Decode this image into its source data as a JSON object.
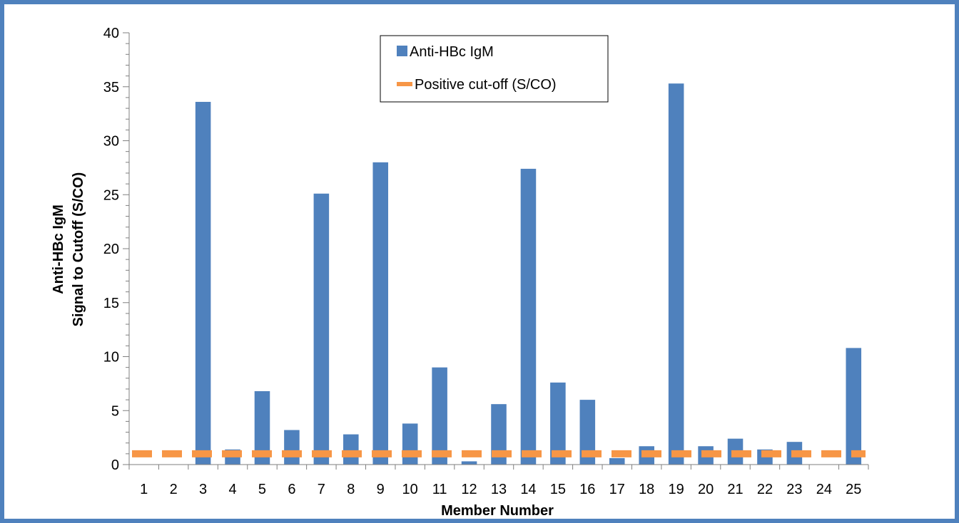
{
  "chart_data": {
    "type": "bar",
    "categories": [
      "1",
      "2",
      "3",
      "4",
      "5",
      "6",
      "7",
      "8",
      "9",
      "10",
      "11",
      "12",
      "13",
      "14",
      "15",
      "16",
      "17",
      "18",
      "19",
      "20",
      "21",
      "22",
      "23",
      "24",
      "25"
    ],
    "series": [
      {
        "name": "Anti-HBc IgM",
        "values": [
          0,
          0,
          33.6,
          1.4,
          6.8,
          3.2,
          25.1,
          2.8,
          28.0,
          3.8,
          9.0,
          0.3,
          5.6,
          27.4,
          7.6,
          6.0,
          0.6,
          1.7,
          35.3,
          1.7,
          2.4,
          1.4,
          2.1,
          0,
          10.8
        ],
        "color": "#4f81bd"
      }
    ],
    "reference_line": {
      "name": "Positive cut-off (S/CO)",
      "value": 1.0,
      "color": "#f79646",
      "style": "dashed"
    },
    "xlabel": "Member Number",
    "ylabel_line1": "Anti-HBc IgM",
    "ylabel_line2": "Signal to Cutoff (S/CO)",
    "ylim": [
      0,
      40
    ],
    "y_ticks": [
      "0",
      "5",
      "10",
      "15",
      "20",
      "25",
      "30",
      "35",
      "40"
    ],
    "grid": false,
    "legend_position": "top-center",
    "frame_color": "#4f81bd"
  }
}
